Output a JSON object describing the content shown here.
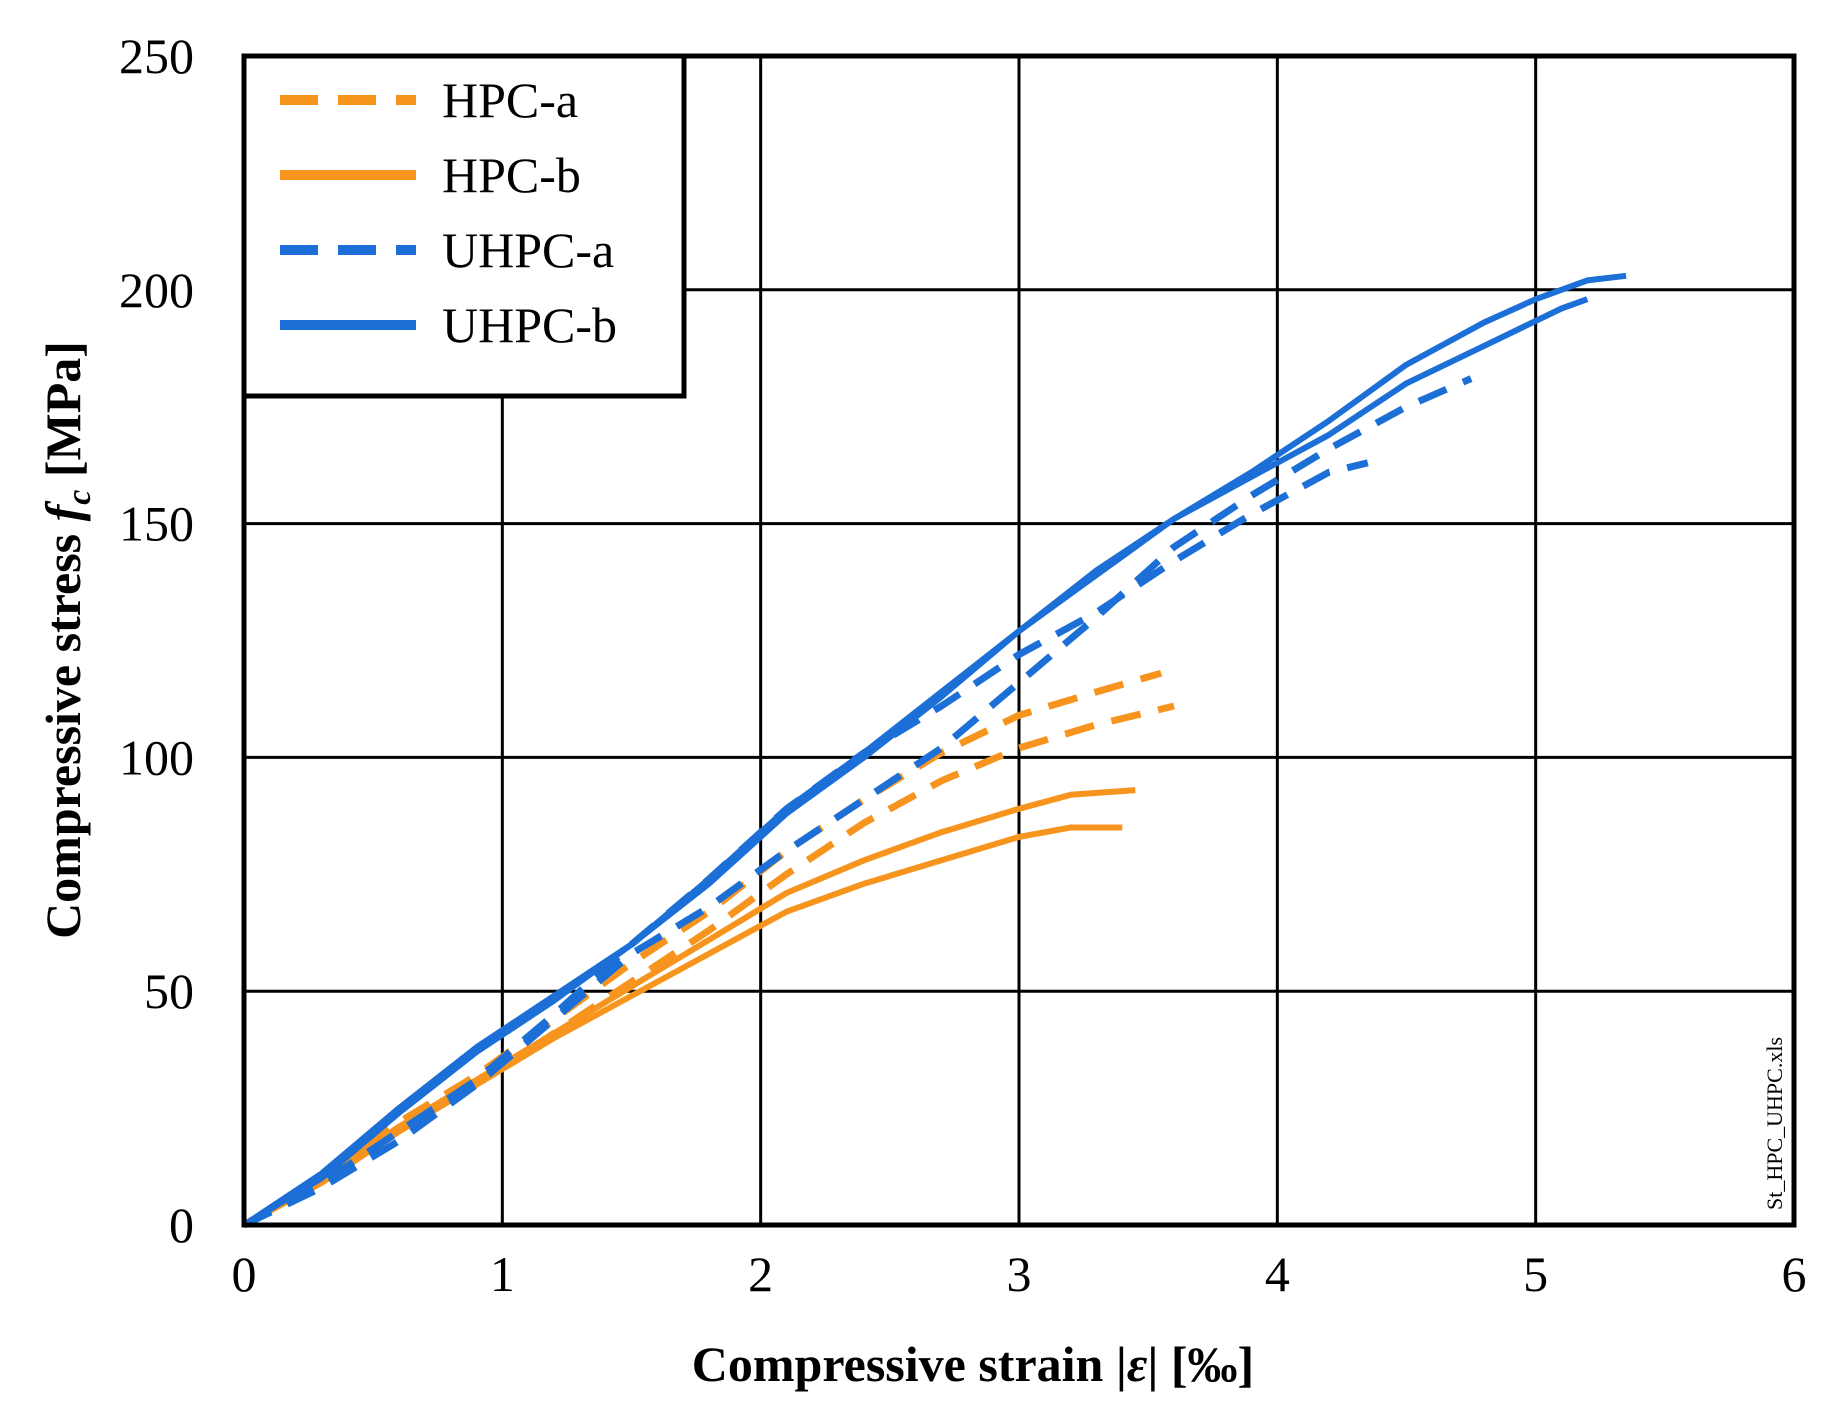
{
  "chart_data": {
    "type": "line",
    "title": "",
    "xlabel": {
      "prefix": "Compressive strain |",
      "symbol": "ε",
      "suffix": "| [‰]"
    },
    "ylabel": {
      "prefix": "Compressive stress ",
      "symbol": "f",
      "subscript": "c",
      "suffix": " [MPa]"
    },
    "xlim": [
      0,
      6
    ],
    "ylim": [
      0,
      250
    ],
    "xticks": [
      0,
      1,
      2,
      3,
      4,
      5,
      6
    ],
    "yticks": [
      0,
      50,
      100,
      150,
      200,
      250
    ],
    "grid": true,
    "legend_position": "top-left",
    "watermark": "St_HPC_UHPC.xls",
    "legend": [
      {
        "label": "HPC-a",
        "color": "#F7941D",
        "dash": "dashed"
      },
      {
        "label": "HPC-b",
        "color": "#F7941D",
        "dash": "solid"
      },
      {
        "label": "UHPC-a",
        "color": "#1B6FD6",
        "dash": "dashed"
      },
      {
        "label": "UHPC-b",
        "color": "#1B6FD6",
        "dash": "solid"
      }
    ],
    "series": [
      {
        "group": "HPC-a",
        "color": "#F7941D",
        "dash": "dashed",
        "points": [
          [
            0,
            0
          ],
          [
            0.3,
            10
          ],
          [
            0.6,
            22
          ],
          [
            0.9,
            32
          ],
          [
            1.2,
            44
          ],
          [
            1.5,
            56
          ],
          [
            1.8,
            67
          ],
          [
            2.1,
            80
          ],
          [
            2.4,
            91
          ],
          [
            2.7,
            101
          ],
          [
            3.0,
            109
          ],
          [
            3.3,
            114
          ],
          [
            3.55,
            118
          ]
        ]
      },
      {
        "group": "HPC-a",
        "color": "#F7941D",
        "dash": "dashed",
        "points": [
          [
            0,
            0
          ],
          [
            0.3,
            9
          ],
          [
            0.6,
            20
          ],
          [
            0.9,
            30
          ],
          [
            1.2,
            41
          ],
          [
            1.5,
            52
          ],
          [
            1.8,
            63
          ],
          [
            2.1,
            75
          ],
          [
            2.4,
            86
          ],
          [
            2.7,
            95
          ],
          [
            3.0,
            102
          ],
          [
            3.3,
            107
          ],
          [
            3.6,
            111
          ]
        ]
      },
      {
        "group": "HPC-b",
        "color": "#F7941D",
        "dash": "solid",
        "points": [
          [
            0,
            0
          ],
          [
            0.3,
            10
          ],
          [
            0.6,
            21
          ],
          [
            0.9,
            31
          ],
          [
            1.2,
            41
          ],
          [
            1.5,
            51
          ],
          [
            1.8,
            61
          ],
          [
            2.1,
            71
          ],
          [
            2.4,
            78
          ],
          [
            2.7,
            84
          ],
          [
            3.0,
            89
          ],
          [
            3.2,
            92
          ],
          [
            3.45,
            93
          ]
        ]
      },
      {
        "group": "HPC-b",
        "color": "#F7941D",
        "dash": "solid",
        "points": [
          [
            0,
            0
          ],
          [
            0.3,
            9
          ],
          [
            0.6,
            20
          ],
          [
            0.9,
            30
          ],
          [
            1.2,
            40
          ],
          [
            1.5,
            49
          ],
          [
            1.8,
            58
          ],
          [
            2.1,
            67
          ],
          [
            2.4,
            73
          ],
          [
            2.7,
            78
          ],
          [
            3.0,
            83
          ],
          [
            3.2,
            85
          ],
          [
            3.4,
            85
          ]
        ]
      },
      {
        "group": "UHPC-a",
        "color": "#1B6FD6",
        "dash": "dashed",
        "points": [
          [
            0,
            0
          ],
          [
            0.3,
            9
          ],
          [
            0.6,
            20
          ],
          [
            0.9,
            31
          ],
          [
            1.2,
            45
          ],
          [
            1.5,
            60
          ],
          [
            1.8,
            74
          ],
          [
            2.1,
            89
          ],
          [
            2.4,
            101
          ],
          [
            2.7,
            111
          ],
          [
            3.0,
            122
          ],
          [
            3.3,
            131
          ],
          [
            3.6,
            142
          ],
          [
            3.9,
            152
          ],
          [
            4.2,
            161
          ],
          [
            4.35,
            163
          ]
        ]
      },
      {
        "group": "UHPC-a",
        "color": "#1B6FD6",
        "dash": "dashed",
        "points": [
          [
            0,
            0
          ],
          [
            0.3,
            8
          ],
          [
            0.6,
            18
          ],
          [
            0.9,
            30
          ],
          [
            1.2,
            44
          ],
          [
            1.5,
            58
          ],
          [
            1.8,
            68
          ],
          [
            2.1,
            80
          ],
          [
            2.4,
            91
          ],
          [
            2.7,
            102
          ],
          [
            3.0,
            116
          ],
          [
            3.3,
            130
          ],
          [
            3.6,
            145
          ],
          [
            3.9,
            156
          ],
          [
            4.2,
            166
          ],
          [
            4.5,
            175
          ],
          [
            4.75,
            181
          ]
        ]
      },
      {
        "group": "UHPC-b",
        "color": "#1B6FD6",
        "dash": "solid",
        "points": [
          [
            0,
            0
          ],
          [
            0.3,
            11
          ],
          [
            0.6,
            25
          ],
          [
            0.9,
            38
          ],
          [
            1.2,
            49
          ],
          [
            1.5,
            60
          ],
          [
            1.8,
            73
          ],
          [
            2.1,
            88
          ],
          [
            2.4,
            100
          ],
          [
            2.7,
            113
          ],
          [
            3.0,
            127
          ],
          [
            3.3,
            139
          ],
          [
            3.6,
            151
          ],
          [
            3.9,
            160
          ],
          [
            4.2,
            169
          ],
          [
            4.5,
            180
          ],
          [
            4.8,
            188
          ],
          [
            5.1,
            196
          ],
          [
            5.2,
            198
          ]
        ]
      },
      {
        "group": "UHPC-b",
        "color": "#1B6FD6",
        "dash": "solid",
        "points": [
          [
            0,
            0
          ],
          [
            0.3,
            10
          ],
          [
            0.6,
            24
          ],
          [
            0.9,
            37
          ],
          [
            1.2,
            48
          ],
          [
            1.5,
            60
          ],
          [
            1.8,
            74
          ],
          [
            2.1,
            89
          ],
          [
            2.4,
            101
          ],
          [
            2.7,
            114
          ],
          [
            3.0,
            127
          ],
          [
            3.3,
            140
          ],
          [
            3.6,
            151
          ],
          [
            3.9,
            161
          ],
          [
            4.2,
            172
          ],
          [
            4.5,
            184
          ],
          [
            4.8,
            193
          ],
          [
            5.0,
            198
          ],
          [
            5.2,
            202
          ],
          [
            5.35,
            203
          ]
        ]
      }
    ]
  }
}
